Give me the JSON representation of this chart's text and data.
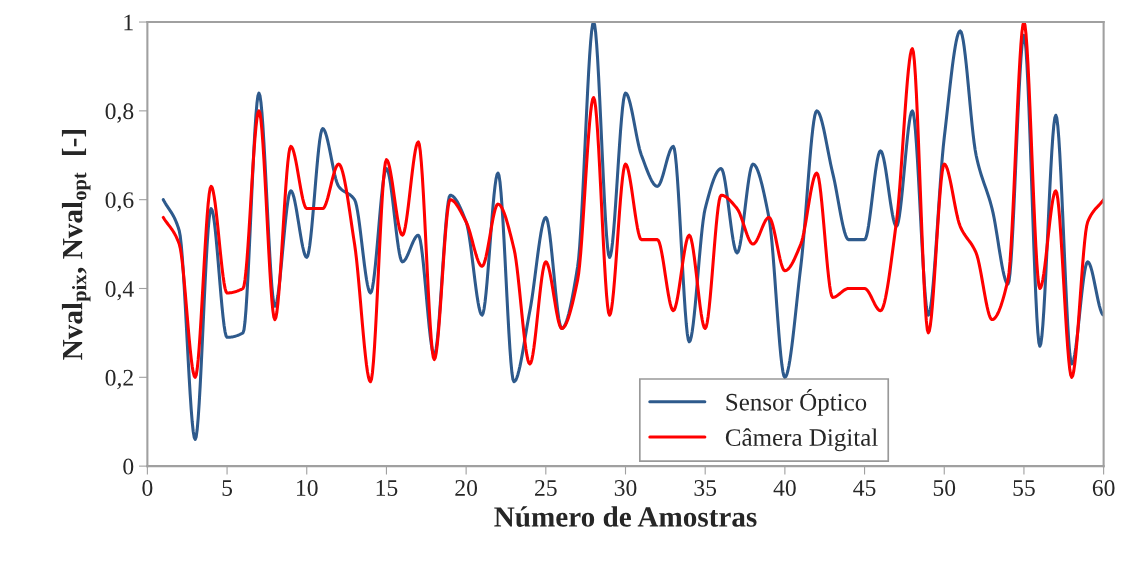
{
  "chart_data": {
    "type": "line",
    "xlabel": "Número de Amostras",
    "ylabel": "Nval$_{pix}$, Nval$_{opt}$  [-]",
    "x": [
      1,
      2,
      3,
      4,
      5,
      6,
      7,
      8,
      9,
      10,
      11,
      12,
      13,
      14,
      15,
      16,
      17,
      18,
      19,
      20,
      21,
      22,
      23,
      24,
      25,
      26,
      27,
      28,
      29,
      30,
      31,
      32,
      33,
      34,
      35,
      36,
      37,
      38,
      39,
      40,
      41,
      42,
      43,
      44,
      45,
      46,
      47,
      48,
      49,
      50,
      51,
      52,
      53,
      54,
      55,
      56,
      57,
      58,
      59,
      60
    ],
    "series": [
      {
        "name": "Sensor Óptico",
        "color": "#2e5a8c",
        "values": [
          0.6,
          0.53,
          0.06,
          0.58,
          0.29,
          0.3,
          0.84,
          0.36,
          0.62,
          0.47,
          0.76,
          0.63,
          0.6,
          0.39,
          0.67,
          0.46,
          0.52,
          0.25,
          0.61,
          0.55,
          0.34,
          0.66,
          0.19,
          0.35,
          0.56,
          0.31,
          0.45,
          1.0,
          0.47,
          0.84,
          0.7,
          0.63,
          0.72,
          0.28,
          0.58,
          0.67,
          0.48,
          0.68,
          0.56,
          0.2,
          0.45,
          0.8,
          0.66,
          0.51,
          0.51,
          0.71,
          0.54,
          0.8,
          0.34,
          0.74,
          0.98,
          0.7,
          0.58,
          0.41,
          0.97,
          0.27,
          0.79,
          0.23,
          0.46,
          0.34
        ]
      },
      {
        "name": "Câmera Digital",
        "color": "#ff0000",
        "values": [
          0.56,
          0.5,
          0.2,
          0.63,
          0.39,
          0.4,
          0.8,
          0.33,
          0.72,
          0.58,
          0.58,
          0.68,
          0.5,
          0.19,
          0.69,
          0.52,
          0.73,
          0.24,
          0.6,
          0.55,
          0.45,
          0.59,
          0.49,
          0.23,
          0.46,
          0.31,
          0.42,
          0.83,
          0.34,
          0.68,
          0.51,
          0.51,
          0.35,
          0.52,
          0.31,
          0.61,
          0.58,
          0.5,
          0.56,
          0.44,
          0.5,
          0.66,
          0.38,
          0.4,
          0.4,
          0.35,
          0.55,
          0.94,
          0.3,
          0.68,
          0.54,
          0.48,
          0.33,
          0.42,
          1.0,
          0.4,
          0.62,
          0.2,
          0.55,
          0.6
        ]
      }
    ],
    "xlim": [
      0,
      60
    ],
    "xticks": [
      0,
      5,
      10,
      15,
      20,
      25,
      30,
      35,
      40,
      45,
      50,
      55,
      60
    ],
    "ylim": [
      0,
      1
    ],
    "yticks": [
      0,
      {
        "value": 0.2,
        "label": "0,2"
      },
      {
        "value": 0.4,
        "label": "0,4"
      },
      {
        "value": 0.6,
        "label": "0,6"
      },
      {
        "value": 0.8,
        "label": "0,8"
      },
      1
    ],
    "grid": false,
    "legend": "bottom right",
    "marker": "none",
    "line_style": "solid"
  }
}
